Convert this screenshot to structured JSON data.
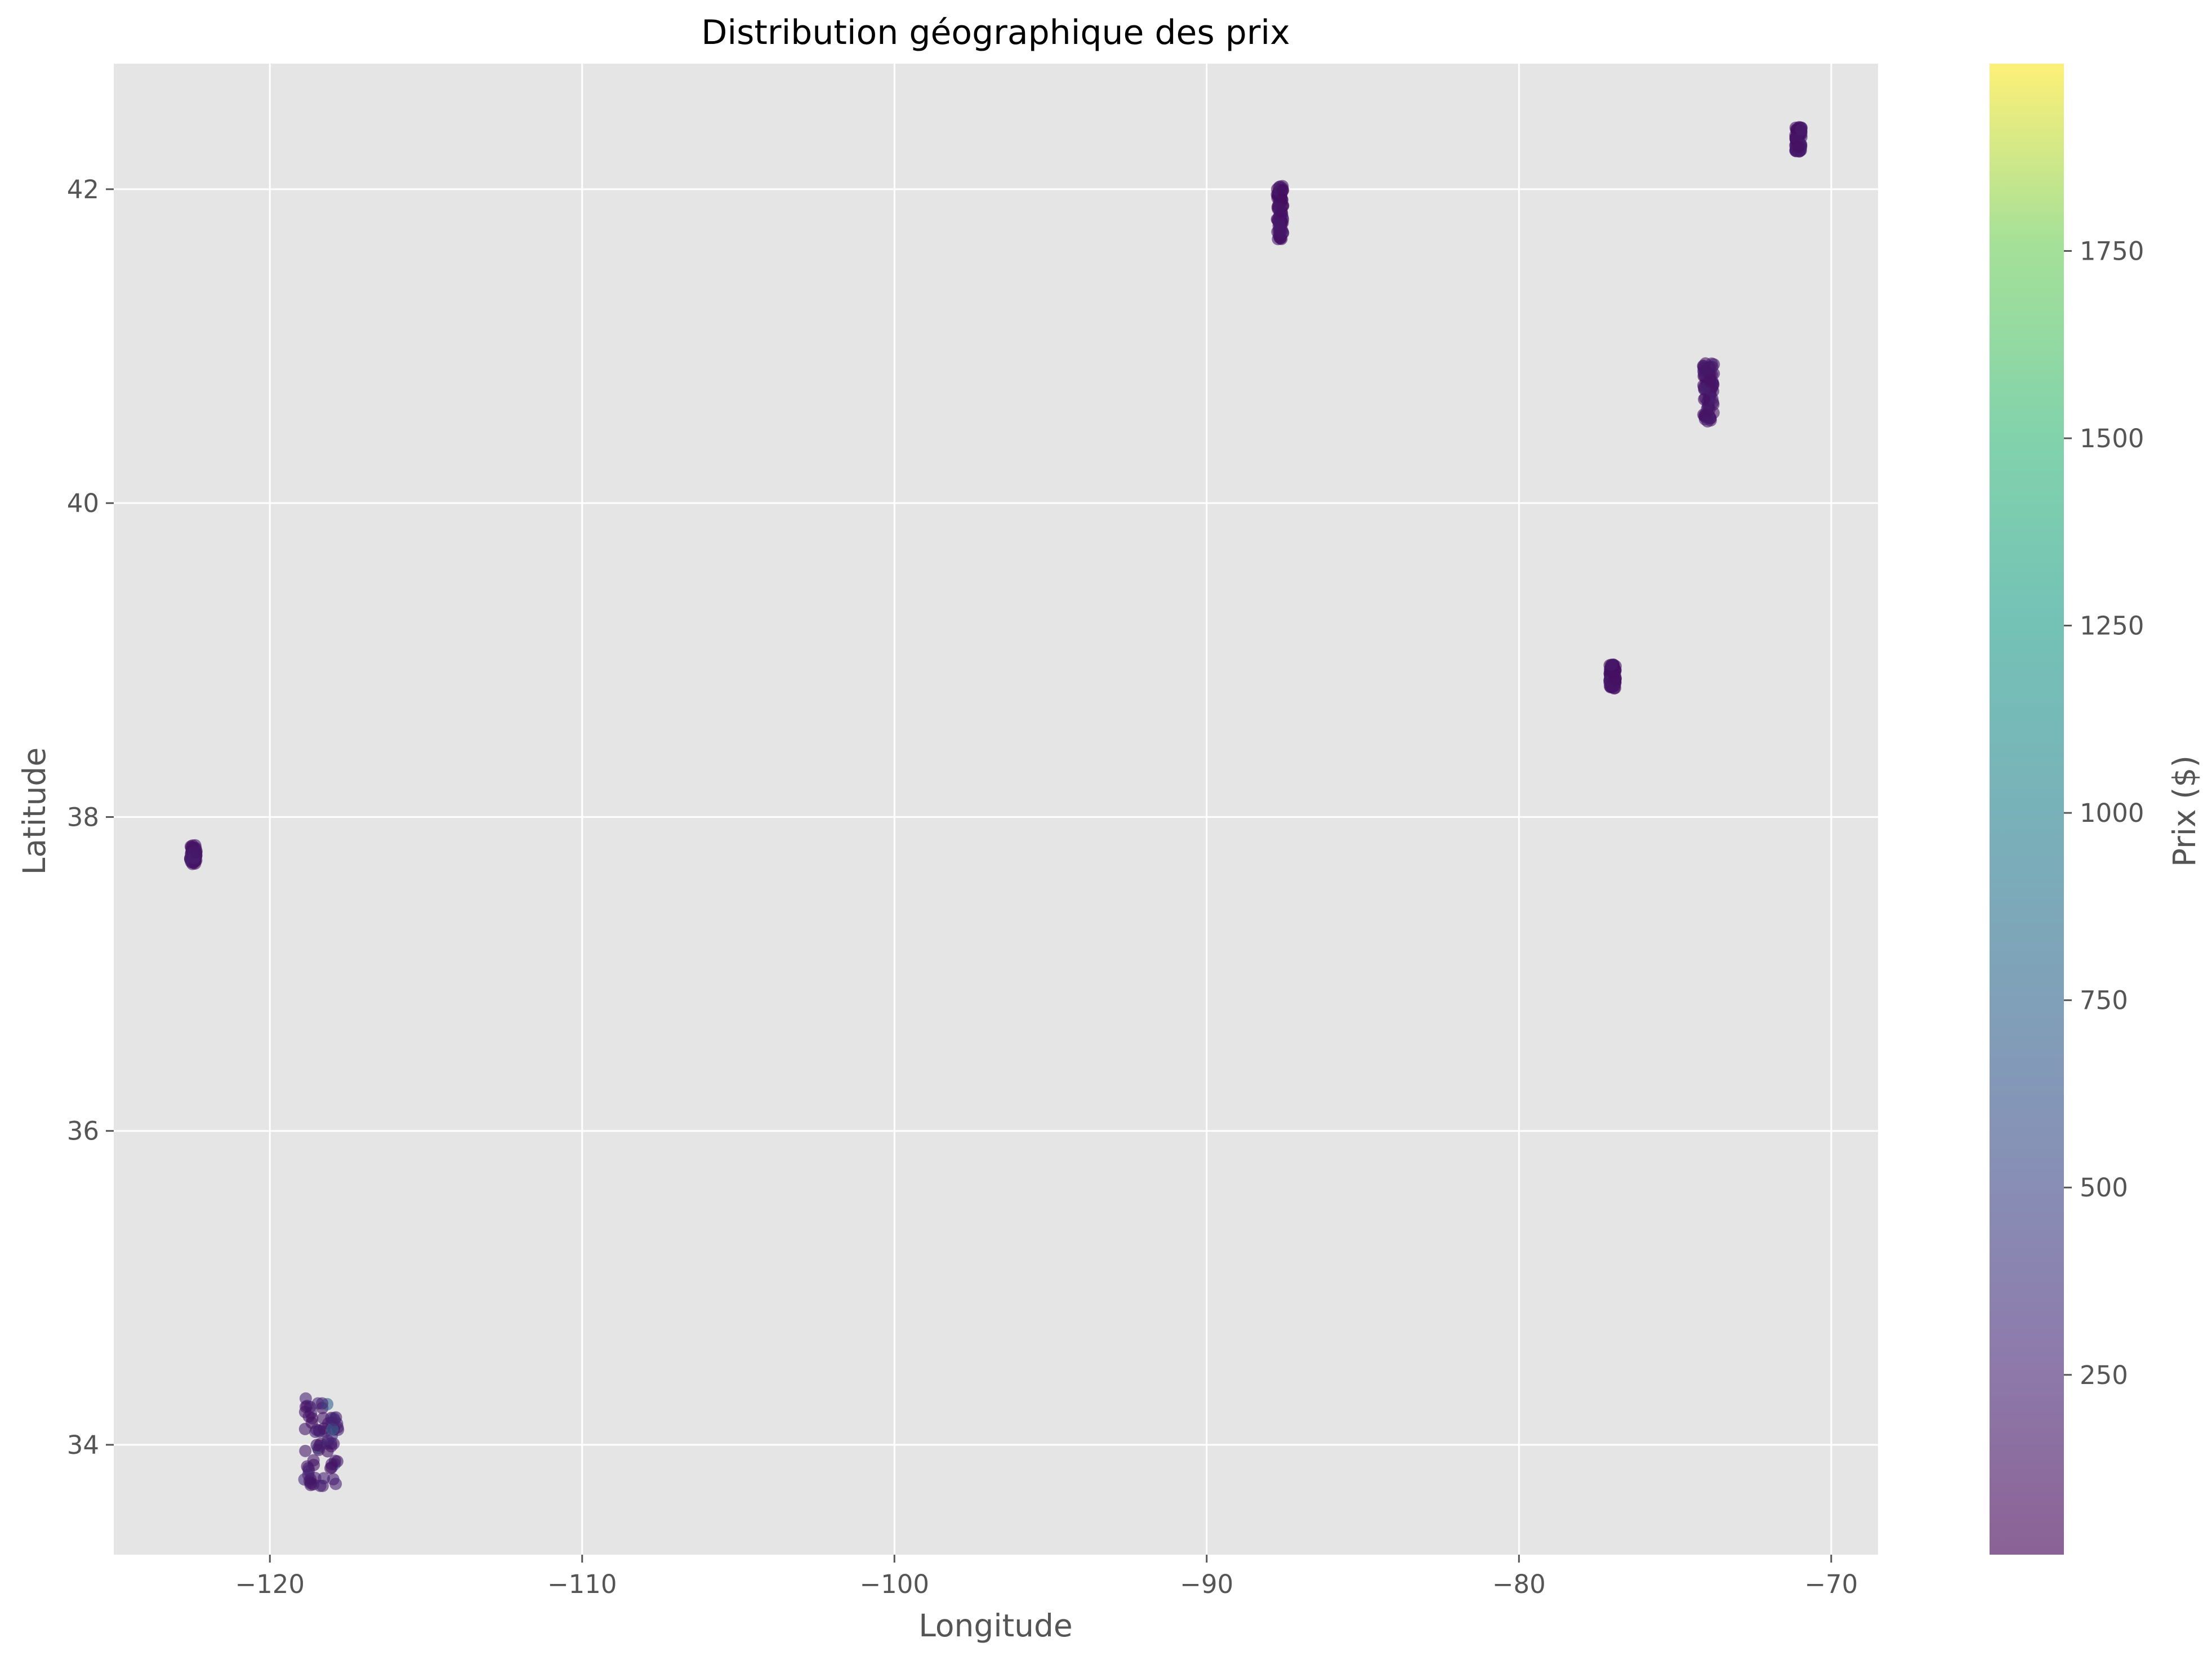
{
  "chart_data": {
    "type": "scatter",
    "title": "Distribution géographique des prix",
    "xlabel": "Longitude",
    "ylabel": "Latitude",
    "xlim": [
      -125.0,
      -68.5
    ],
    "ylim": [
      33.3,
      42.8
    ],
    "xticks": [
      -120,
      -110,
      -100,
      -90,
      -80,
      -70
    ],
    "xtick_labels": [
      "−120",
      "−110",
      "−100",
      "−90",
      "−80",
      "−70"
    ],
    "yticks": [
      34,
      36,
      38,
      40,
      42
    ],
    "ytick_labels": [
      "34",
      "36",
      "38",
      "40",
      "42"
    ],
    "grid": true,
    "colormap": "viridis",
    "marker_alpha": 0.6,
    "colorbar": {
      "label": "Prix ($)",
      "range": [
        10,
        2000
      ],
      "ticks": [
        250,
        500,
        750,
        1000,
        1250,
        1500,
        1750
      ],
      "tick_labels": [
        "250",
        "500",
        "750",
        "1000",
        "1250",
        "1500",
        "1750"
      ]
    },
    "clusters": [
      {
        "lon_range": [
          -122.55,
          -122.35
        ],
        "lat_range": [
          37.7,
          37.82
        ],
        "typical_price": 150
      },
      {
        "lon_range": [
          -118.9,
          -117.8
        ],
        "lat_range": [
          33.72,
          34.3
        ],
        "typical_price": 180,
        "max_price": 900
      },
      {
        "lon_range": [
          -87.75,
          -87.55
        ],
        "lat_range": [
          41.68,
          42.02
        ],
        "typical_price": 120
      },
      {
        "lon_range": [
          -77.1,
          -76.9
        ],
        "lat_range": [
          38.82,
          38.98
        ],
        "typical_price": 130
      },
      {
        "lon_range": [
          -74.1,
          -73.75
        ],
        "lat_range": [
          40.52,
          40.9
        ],
        "typical_price": 150
      },
      {
        "lon_range": [
          -71.15,
          -70.95
        ],
        "lat_range": [
          42.24,
          42.4
        ],
        "typical_price": 140
      }
    ]
  }
}
